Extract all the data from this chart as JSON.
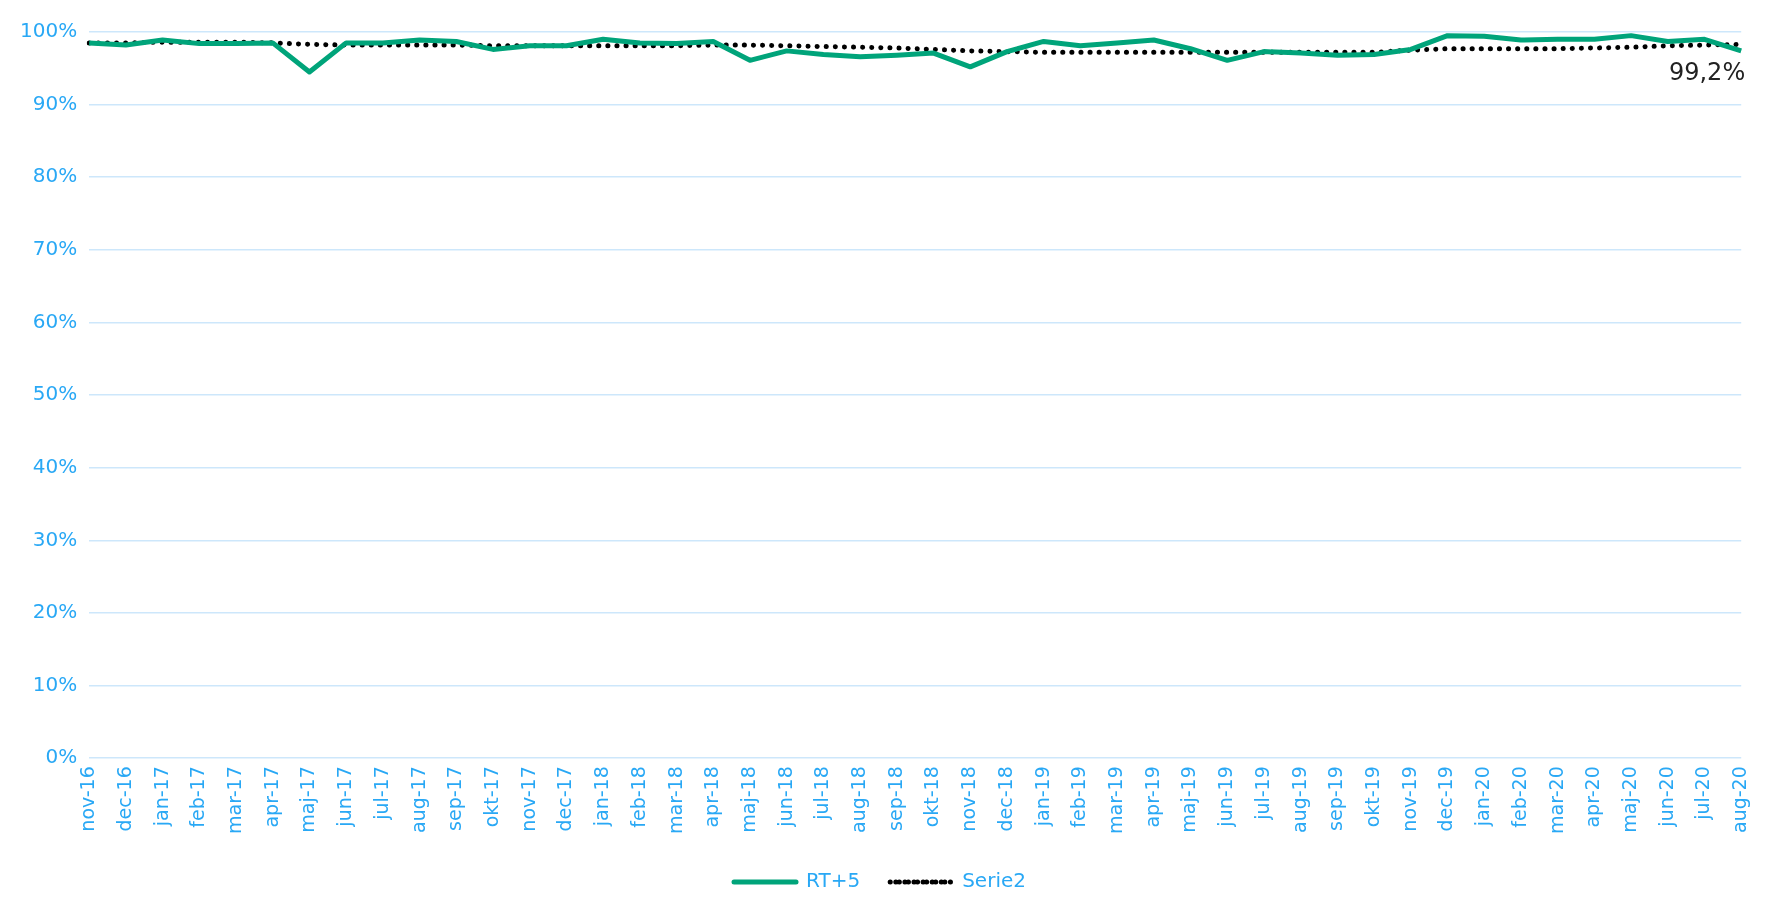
{
  "chart_data": {
    "type": "line",
    "categories": [
      "nov-16",
      "dec-16",
      "jan-17",
      "feb-17",
      "mar-17",
      "apr-17",
      "maj-17",
      "jun-17",
      "jul-17",
      "aug-17",
      "sep-17",
      "okt-17",
      "nov-17",
      "dec-17",
      "jan-18",
      "feb-18",
      "mar-18",
      "apr-18",
      "maj-18",
      "jun-18",
      "jul-18",
      "aug-18",
      "sep-18",
      "okt-18",
      "nov-18",
      "dec-18",
      "jan-19",
      "feb-19",
      "mar-19",
      "apr-19",
      "maj-19",
      "jun-19",
      "jul-19",
      "aug-19",
      "sep-19",
      "okt-19",
      "nov-19",
      "dec-19",
      "jan-20",
      "feb-20",
      "mar-20",
      "apr-20",
      "maj-20",
      "jun-20",
      "jul-20",
      "aug-20"
    ],
    "series": [
      {
        "name": "RT+5",
        "color": "#00a47a",
        "line_style": "solid",
        "values": [
          98.5,
          98.2,
          98.9,
          98.4,
          98.4,
          98.5,
          94.5,
          98.5,
          98.5,
          98.9,
          98.7,
          97.6,
          98.1,
          98.1,
          99.0,
          98.5,
          98.4,
          98.7,
          96.1,
          97.4,
          96.9,
          96.6,
          96.8,
          97.1,
          95.2,
          97.3,
          98.7,
          98.1,
          98.5,
          98.9,
          97.7,
          96.1,
          97.3,
          97.1,
          96.8,
          96.9,
          97.6,
          99.5,
          99.4,
          98.9,
          99.0,
          99.0,
          99.5,
          98.7,
          99.0,
          97.4
        ]
      },
      {
        "name": "Serie2",
        "color": "#000000",
        "line_style": "dotted",
        "values": [
          98.5,
          98.5,
          98.6,
          98.6,
          98.6,
          98.5,
          98.3,
          98.2,
          98.2,
          98.2,
          98.2,
          98.1,
          98.1,
          98.1,
          98.1,
          98.1,
          98.1,
          98.2,
          98.2,
          98.1,
          98.0,
          97.9,
          97.8,
          97.6,
          97.4,
          97.3,
          97.2,
          97.2,
          97.2,
          97.2,
          97.2,
          97.2,
          97.2,
          97.2,
          97.2,
          97.2,
          97.5,
          97.7,
          97.7,
          97.7,
          97.7,
          97.8,
          97.9,
          98.1,
          98.2,
          98.3
        ]
      }
    ],
    "ylim": [
      0,
      100
    ],
    "yticks": [
      {
        "value": 0,
        "label": "0%"
      },
      {
        "value": 10,
        "label": "10%"
      },
      {
        "value": 20,
        "label": "20%"
      },
      {
        "value": 30,
        "label": "30%"
      },
      {
        "value": 40,
        "label": "40%"
      },
      {
        "value": 50,
        "label": "50%"
      },
      {
        "value": 60,
        "label": "60%"
      },
      {
        "value": 70,
        "label": "70%"
      },
      {
        "value": 80,
        "label": "80%"
      },
      {
        "value": 90,
        "label": "90%"
      },
      {
        "value": 100,
        "label": "100%"
      }
    ],
    "grid": "y",
    "legend": "bottom",
    "marker": "none",
    "annotations": [
      "99,2%"
    ]
  }
}
